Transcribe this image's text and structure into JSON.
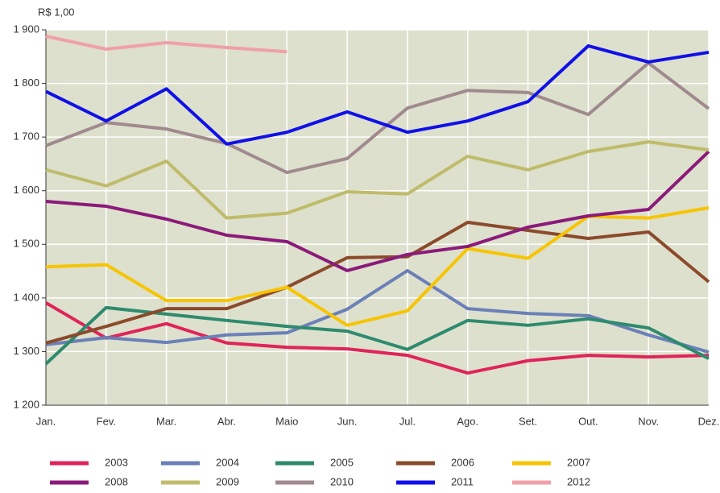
{
  "chart_data": {
    "type": "line",
    "y_axis_label": "R$ 1,00",
    "categories": [
      "Jan.",
      "Fev.",
      "Mar.",
      "Abr.",
      "Maio",
      "Jun.",
      "Jul.",
      "Ago.",
      "Set.",
      "Out.",
      "Nov.",
      "Dez."
    ],
    "ylim": [
      1200,
      1900
    ],
    "yticks": [
      {
        "value": 1200,
        "label": "1 200"
      },
      {
        "value": 1300,
        "label": "1 300"
      },
      {
        "value": 1400,
        "label": "1 400"
      },
      {
        "value": 1500,
        "label": "1 500"
      },
      {
        "value": 1600,
        "label": "1 600"
      },
      {
        "value": 1700,
        "label": "1 700"
      },
      {
        "value": 1800,
        "label": "1 800"
      },
      {
        "value": 1900,
        "label": "1 900"
      }
    ],
    "grid": true,
    "series": [
      {
        "name": "2003",
        "color": "#e0245a",
        "values": [
          1391,
          1325,
          1352,
          1316,
          1308,
          1305,
          1293,
          1260,
          1283,
          1293,
          1290,
          1293
        ]
      },
      {
        "name": "2004",
        "color": "#6b80b8",
        "values": [
          1313,
          1326,
          1317,
          1331,
          1335,
          1379,
          1451,
          1380,
          1371,
          1367,
          1331,
          1299
        ]
      },
      {
        "name": "2005",
        "color": "#2e8a6e",
        "values": [
          1277,
          1382,
          1370,
          1358,
          1347,
          1338,
          1304,
          1358,
          1349,
          1361,
          1344,
          1287
        ]
      },
      {
        "name": "2006",
        "color": "#8b4a2b",
        "values": [
          1316,
          1347,
          1380,
          1380,
          1420,
          1475,
          1477,
          1541,
          1526,
          1511,
          1523,
          1430
        ]
      },
      {
        "name": "2007",
        "color": "#f7c400",
        "values": [
          1458,
          1462,
          1395,
          1395,
          1420,
          1349,
          1376,
          1492,
          1474,
          1552,
          1549,
          1568
        ]
      },
      {
        "name": "2008",
        "color": "#8b1a7a",
        "values": [
          1580,
          1571,
          1547,
          1517,
          1505,
          1451,
          1481,
          1496,
          1532,
          1553,
          1565,
          1673
        ]
      },
      {
        "name": "2009",
        "color": "#bfbb6a",
        "values": [
          1639,
          1609,
          1655,
          1549,
          1558,
          1598,
          1594,
          1664,
          1639,
          1673,
          1691,
          1676
        ]
      },
      {
        "name": "2010",
        "color": "#a08a8f",
        "values": [
          1684,
          1727,
          1715,
          1688,
          1634,
          1660,
          1754,
          1787,
          1783,
          1742,
          1838,
          1753
        ]
      },
      {
        "name": "2011",
        "color": "#1010e8",
        "values": [
          1785,
          1730,
          1790,
          1687,
          1709,
          1747,
          1709,
          1730,
          1766,
          1870,
          1840,
          1858
        ]
      },
      {
        "name": "2012",
        "color": "#f0a0a8",
        "values": [
          1888,
          1864,
          1876,
          1867,
          1859,
          null,
          null,
          null,
          null,
          null,
          null,
          null
        ]
      }
    ]
  }
}
